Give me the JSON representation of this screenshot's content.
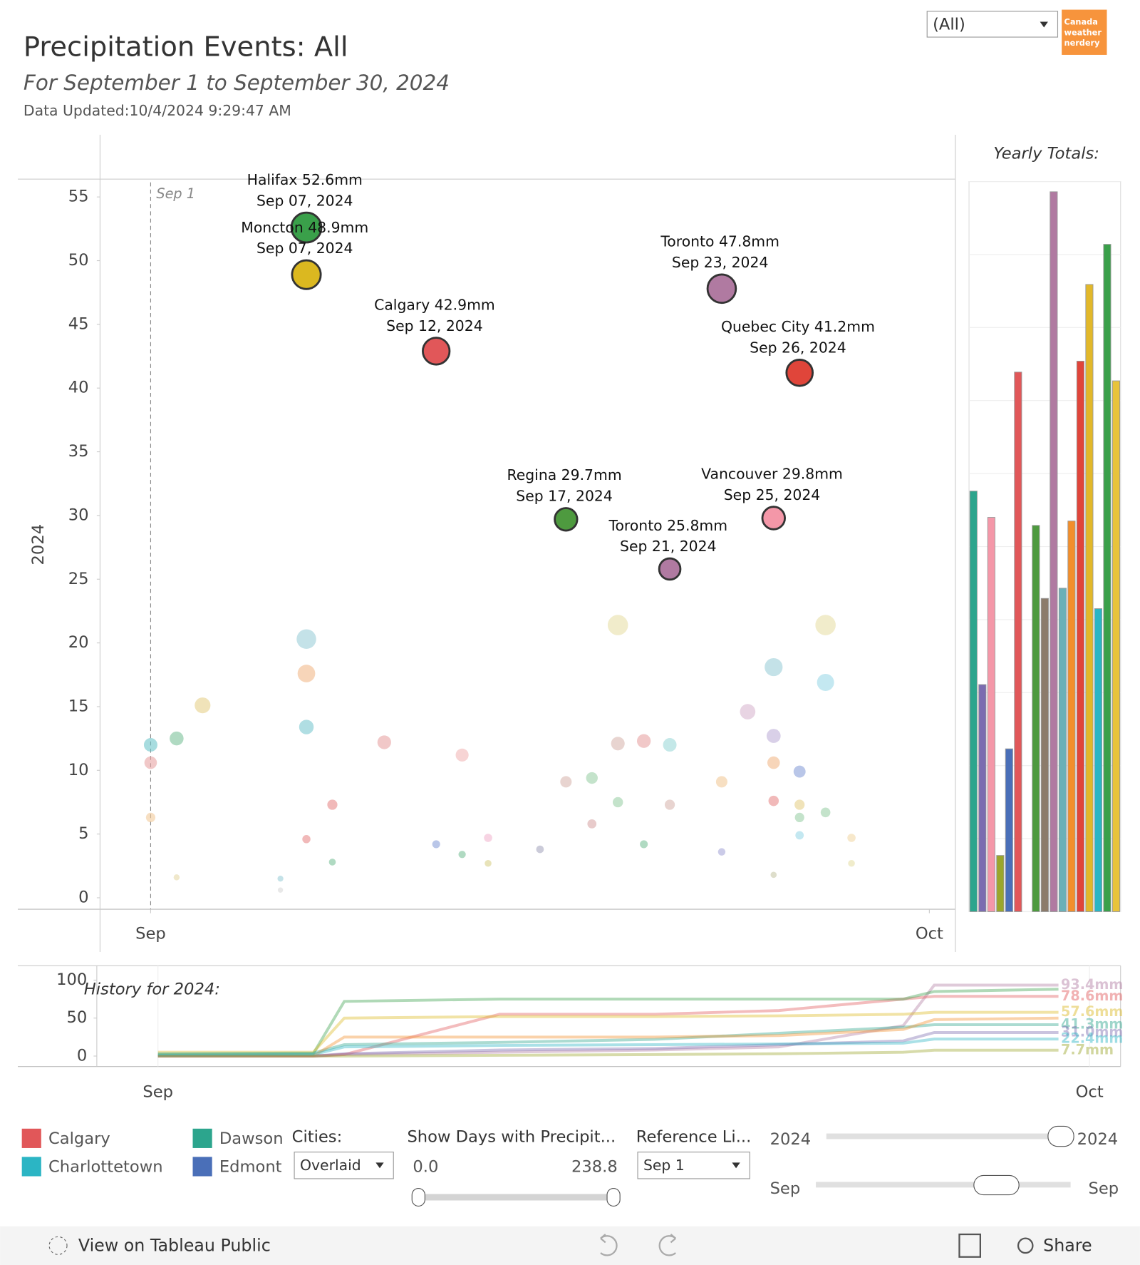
{
  "header": {
    "title": "Precipitation Events: All",
    "subtitle": "For September 1 to September 30, 2024",
    "updated": "Data Updated:10/4/2024 9:29:47 AM",
    "filter": "(All)",
    "logo": [
      "Canada",
      "weather",
      "nerdery"
    ]
  },
  "chart_data": [
    {
      "type": "scatter",
      "y_label": "2024",
      "reference_label": "Sep 1",
      "reference_x": 1,
      "xlim": [
        -0.95,
        32
      ],
      "xticks": [
        {
          "value": 1,
          "label": "Sep"
        },
        {
          "value": 31,
          "label": "Oct"
        }
      ],
      "ylim": [
        -0.9,
        56.4
      ],
      "yticks": [
        0,
        5,
        10,
        15,
        20,
        25,
        30,
        35,
        40,
        45,
        50,
        55
      ],
      "events": {
        "x": [
          7,
          7,
          12,
          17,
          21,
          23,
          25,
          26
        ],
        "values": [
          52.6,
          48.9,
          42.9,
          29.7,
          25.8,
          47.8,
          29.8,
          41.2
        ],
        "colors": [
          "#3aa04a",
          "#dbb820",
          "#e15759",
          "#4e9a3f",
          "#b07aa1",
          "#b07aa1",
          "#f497a8",
          "#e0453a"
        ],
        "value_labels": [
          "Halifax 52.6mm",
          "Moncton 48.9mm",
          "Calgary 42.9mm",
          "Regina 29.7mm",
          "Toronto 25.8mm",
          "Toronto 47.8mm",
          "Vancouver 29.8mm",
          "Quebec City 41.2mm"
        ],
        "date_labels": [
          "Sep 07, 2024",
          "Sep 07, 2024",
          "Sep 12, 2024",
          "Sep 17, 2024",
          "Sep 21, 2024",
          "Sep 23, 2024",
          "Sep 25, 2024",
          "Sep 26, 2024"
        ]
      },
      "background_events": {
        "x": [
          1,
          1,
          1,
          2,
          3,
          7,
          7,
          7,
          8,
          7,
          8,
          6,
          10,
          13,
          12,
          13,
          14,
          14,
          16,
          17,
          18,
          18,
          19,
          19,
          19,
          20,
          20,
          21,
          21,
          23,
          23,
          24,
          25,
          25,
          25,
          25,
          26,
          26,
          26,
          26,
          27,
          27,
          27,
          28,
          28,
          25,
          2,
          6
        ],
        "values": [
          12.0,
          10.6,
          6.3,
          12.5,
          15.1,
          20.3,
          17.6,
          13.4,
          7.3,
          4.6,
          2.8,
          1.5,
          12.2,
          11.2,
          4.2,
          3.4,
          4.7,
          2.7,
          3.8,
          9.1,
          9.4,
          5.8,
          21.4,
          12.1,
          7.5,
          12.3,
          4.2,
          12.0,
          7.3,
          9.1,
          3.6,
          14.6,
          18.1,
          12.7,
          10.6,
          7.6,
          9.9,
          7.3,
          6.3,
          4.9,
          21.4,
          16.9,
          6.7,
          4.7,
          2.7,
          1.8,
          1.6,
          0.6
        ],
        "colors": [
          "#6cc5c9",
          "#e8a3a3",
          "#f2c99a",
          "#7cc29a",
          "#e6d08a",
          "#9ccfd8",
          "#f2b98a",
          "#7cc8d0",
          "#e88a8a",
          "#e88a8a",
          "#7cc29a",
          "#9ccfd8",
          "#e8a3a3",
          "#f2b8b8",
          "#8aa0d8",
          "#7cc29a",
          "#f2b8d0",
          "#d8d08a",
          "#a8a8c0",
          "#d8b8b0",
          "#9cd0a8",
          "#d8a8a8",
          "#e8e0a8",
          "#d8b8b0",
          "#9cd0a8",
          "#e8a3a3",
          "#7cc29a",
          "#9cd8d8",
          "#d8b8b0",
          "#f2c99a",
          "#a8a8d8",
          "#d8b8d0",
          "#9ccfd8",
          "#c0b0d8",
          "#f2b98a",
          "#e88a8a",
          "#8aa0d8",
          "#e6d08a",
          "#9cd0a8",
          "#9cd8e8",
          "#e8e0a8",
          "#9cd8e8",
          "#9cd0a8",
          "#f2d8a8",
          "#e6e0a8",
          "#c8c8a8",
          "#e6d8a8",
          "#d8d8d8"
        ]
      }
    },
    {
      "type": "bar",
      "title": "Yearly Totals:",
      "categories": [
        null,
        null,
        null,
        null,
        null,
        null,
        null,
        null,
        null,
        null,
        null,
        null,
        null,
        null,
        null,
        null,
        null
      ],
      "values": [
        576,
        311,
        540,
        77,
        223,
        739,
        null,
        529,
        429,
        986,
        443,
        535,
        754,
        859,
        415,
        914,
        727
      ],
      "colors": [
        "#2ca58d",
        "#7b6cb0",
        "#f497a8",
        "#9aa62b",
        "#4a6fb8",
        "#e15759",
        null,
        "#4e9a3f",
        "#8c7b6b",
        "#b07aa1",
        "#6ab0b8",
        "#f28e2b",
        "#e0453a",
        "#e2b82a",
        "#2bb5c4",
        "#3aa04a",
        "#e8c33b"
      ],
      "ylim": [
        0,
        1000
      ],
      "yticks": [
        0,
        100,
        200,
        300,
        400,
        500,
        600,
        700,
        800,
        900,
        1000
      ],
      "grid": true
    },
    {
      "type": "line",
      "title": "History for 2024:",
      "x": [
        1,
        6,
        7,
        12,
        17,
        21,
        25,
        26,
        30
      ],
      "xlim": [
        -0.97,
        32
      ],
      "xticks": [
        {
          "value": 1,
          "label": "Sep"
        },
        {
          "value": 31,
          "label": "Oct"
        }
      ],
      "ylim": [
        -13.8,
        119
      ],
      "yticks": [
        0,
        50,
        100
      ],
      "series": [
        {
          "color": "#b07aa1",
          "values": [
            0,
            0,
            2,
            5,
            8,
            12,
            40,
            93.4,
            93.4
          ],
          "end_label": "93.4mm"
        },
        {
          "color": "#e15759",
          "values": [
            0,
            0,
            2,
            55,
            55,
            60,
            75,
            78.6,
            78.6
          ],
          "end_label": "78.6mm"
        },
        {
          "color": "#3aa04a",
          "values": [
            2,
            3,
            72,
            75,
            75,
            75,
            75,
            85,
            88
          ]
        },
        {
          "color": "#dbb820",
          "values": [
            5,
            5,
            50,
            52,
            52,
            53,
            55,
            57.6,
            57.6
          ],
          "end_label": "57.6mm"
        },
        {
          "color": "#2ca58d",
          "values": [
            3,
            4,
            15,
            18,
            22,
            30,
            38,
            41.3,
            41.3
          ],
          "end_label": "41.3mm"
        },
        {
          "color": "#f28e2b",
          "values": [
            0,
            0,
            25,
            25,
            25,
            27,
            35,
            48,
            50
          ]
        },
        {
          "color": "#7b6cb0",
          "values": [
            0,
            0,
            3,
            8,
            10,
            15,
            20,
            31,
            31
          ],
          "end_label": "31.0mm"
        },
        {
          "color": "#2bb5c4",
          "values": [
            1,
            2,
            12,
            14,
            15,
            16,
            17,
            22.4,
            22.4
          ],
          "end_label": "22.4mm"
        },
        {
          "color": "#9aa62b",
          "values": [
            0,
            0,
            0,
            1,
            2,
            3,
            5,
            7.7,
            7.7
          ],
          "end_label": "7.7mm"
        }
      ]
    }
  ],
  "legend": [
    {
      "name": "Calgary",
      "color": "#e15759"
    },
    {
      "name": "Charlottetown",
      "color": "#2bb5c4"
    },
    {
      "name": "Dawson",
      "color": "#2ca58d"
    },
    {
      "name": "Edmont",
      "color": "#4a6fb8"
    }
  ],
  "controls": {
    "cities_label": "Cities:",
    "cities_value": "Overlaid",
    "days_label": "Show Days with Precipit...",
    "days_min": "0.0",
    "days_max": "238.8",
    "reference_label": "Reference Li...",
    "reference_value": "Sep 1",
    "year_from": "2024",
    "year_to": "2024",
    "month_from": "Sep",
    "month_to": "Sep"
  },
  "footer": {
    "tableau": "View on Tableau Public",
    "share": "Share"
  }
}
